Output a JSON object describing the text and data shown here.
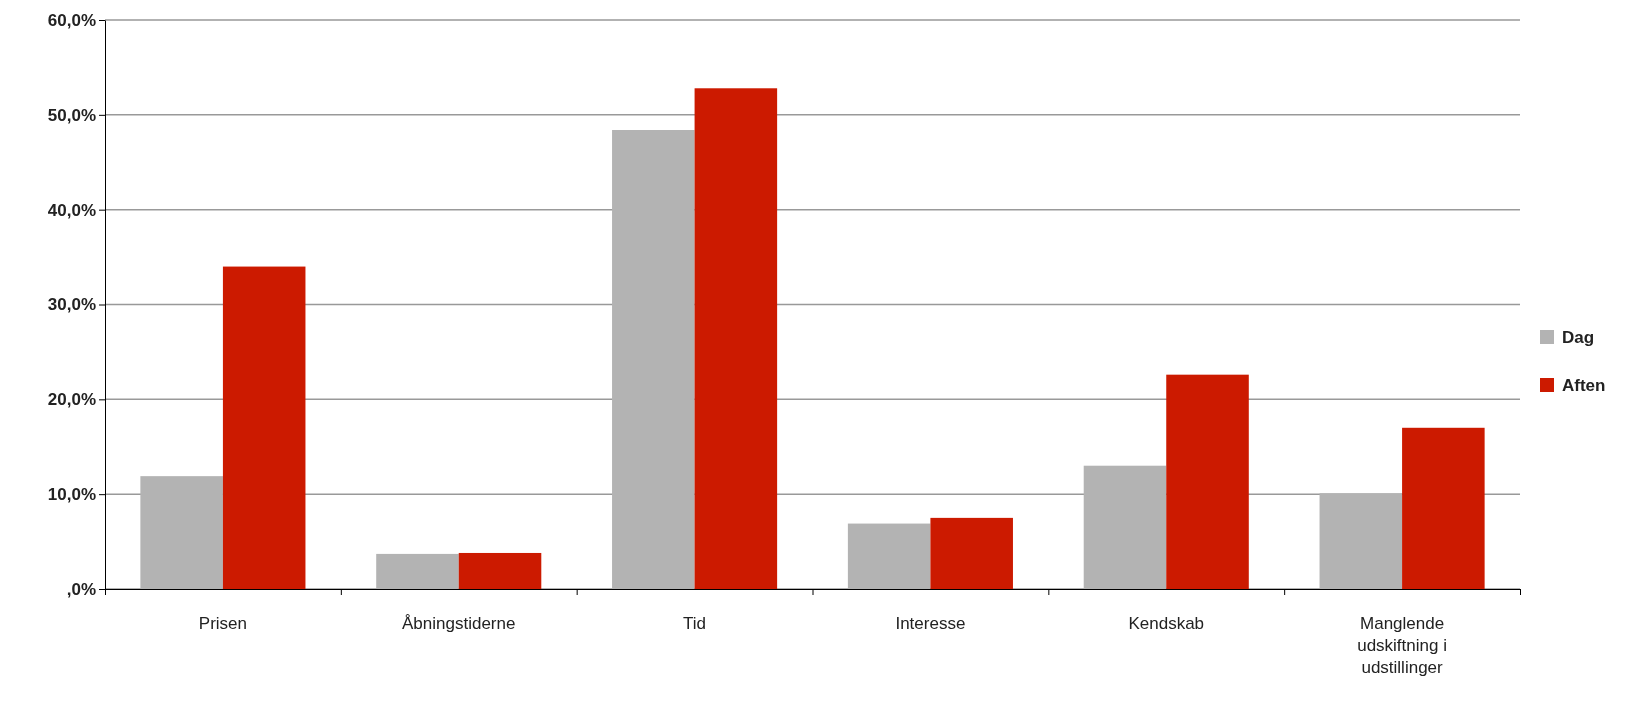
{
  "chart_data": {
    "type": "bar",
    "categories": [
      "Prisen",
      "Åbningstiderne",
      "Tid",
      "Interesse",
      "Kendskab",
      "Manglende udskiftning i udstillinger"
    ],
    "series": [
      {
        "name": "Dag",
        "color": "#b3b3b3",
        "values": [
          11.9,
          3.7,
          48.4,
          6.9,
          13.0,
          10.1
        ]
      },
      {
        "name": "Aften",
        "color": "#cc1a00",
        "values": [
          34.0,
          3.8,
          52.8,
          7.5,
          22.6,
          17.0
        ]
      }
    ],
    "ylim": [
      0,
      60
    ],
    "yticks": [
      {
        "value": 0,
        "label": ",0%"
      },
      {
        "value": 10,
        "label": "10,0%"
      },
      {
        "value": 20,
        "label": "20,0%"
      },
      {
        "value": 30,
        "label": "30,0%"
      },
      {
        "value": 40,
        "label": "40,0%"
      },
      {
        "value": 50,
        "label": "50,0%"
      },
      {
        "value": 60,
        "label": "60,0%"
      }
    ],
    "grid": "y",
    "legend": "right"
  }
}
